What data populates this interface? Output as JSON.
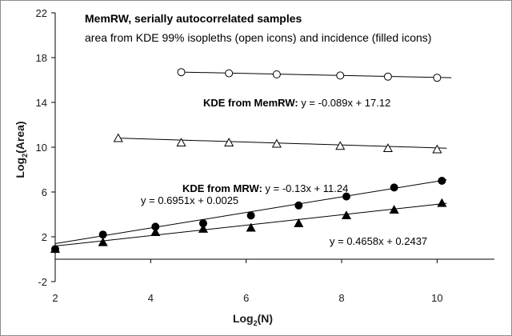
{
  "chart_data": {
    "type": "scatter",
    "title": "MemRW, serially autocorrelated samples",
    "subtitle": "area from KDE 99% isopleths (open icons) and incidence (filled icons)",
    "xlabel": {
      "prefix": "Log",
      "sub": "2",
      "suffix": "(N)"
    },
    "ylabel": {
      "prefix": "Log",
      "sub": "2",
      "suffix": "(Area)"
    },
    "xlim": [
      2,
      11.2
    ],
    "ylim": [
      -2,
      22
    ],
    "xticks": [
      "2",
      "4",
      "6",
      "8",
      "10"
    ],
    "xtick_values": [
      2,
      4,
      6,
      8,
      10
    ],
    "yticks": [
      "-2",
      "2",
      "6",
      "10",
      "14",
      "18",
      "22"
    ],
    "ytick_values": [
      -2,
      2,
      6,
      10,
      14,
      18,
      22
    ],
    "grid": false,
    "series": [
      {
        "marker": "open-circle",
        "x": [
          4.64,
          5.64,
          6.64,
          7.97,
          8.97,
          10.0
        ],
        "y": [
          16.7,
          16.6,
          16.5,
          16.4,
          16.3,
          16.2
        ],
        "fit": {
          "slope": -0.089,
          "intercept": 17.12,
          "x_range": [
            4.64,
            10.3
          ]
        },
        "label": {
          "bold": "KDE from MemRW:",
          "text": " y = -0.089x + 17.12"
        }
      },
      {
        "marker": "open-triangle",
        "x": [
          3.32,
          4.64,
          5.64,
          6.64,
          7.97,
          8.97,
          10.0
        ],
        "y": [
          10.8,
          10.4,
          10.4,
          10.3,
          10.1,
          9.9,
          9.8
        ],
        "fit": {
          "slope": -0.13,
          "intercept": 11.24,
          "x_range": [
            3.32,
            10.2
          ]
        },
        "label": {
          "bold": "KDE from MRW:",
          "text": " y = -0.13x + 11.24"
        }
      },
      {
        "marker": "filled-circle",
        "x": [
          2.0,
          3.0,
          4.1,
          5.1,
          6.1,
          7.1,
          8.1,
          9.1,
          10.1
        ],
        "y": [
          0.9,
          2.2,
          2.9,
          3.2,
          3.9,
          4.8,
          5.6,
          6.4,
          7.0
        ],
        "fit": {
          "slope": 0.6951,
          "intercept": 0.0025,
          "x_range": [
            2.0,
            10.2
          ]
        },
        "label": {
          "bold": "",
          "text": "y = 0.6951x + 0.0025"
        }
      },
      {
        "marker": "filled-triangle",
        "x": [
          2.0,
          3.0,
          4.1,
          5.1,
          6.1,
          7.1,
          8.1,
          9.1,
          10.1
        ],
        "y": [
          0.9,
          1.5,
          2.4,
          2.7,
          2.8,
          3.2,
          3.9,
          4.4,
          5.0
        ],
        "fit": {
          "slope": 0.4658,
          "intercept": 0.2437,
          "x_range": [
            2.0,
            10.2
          ]
        },
        "label": {
          "bold": "",
          "text": "y = 0.4658x + 0.2437"
        }
      }
    ]
  }
}
